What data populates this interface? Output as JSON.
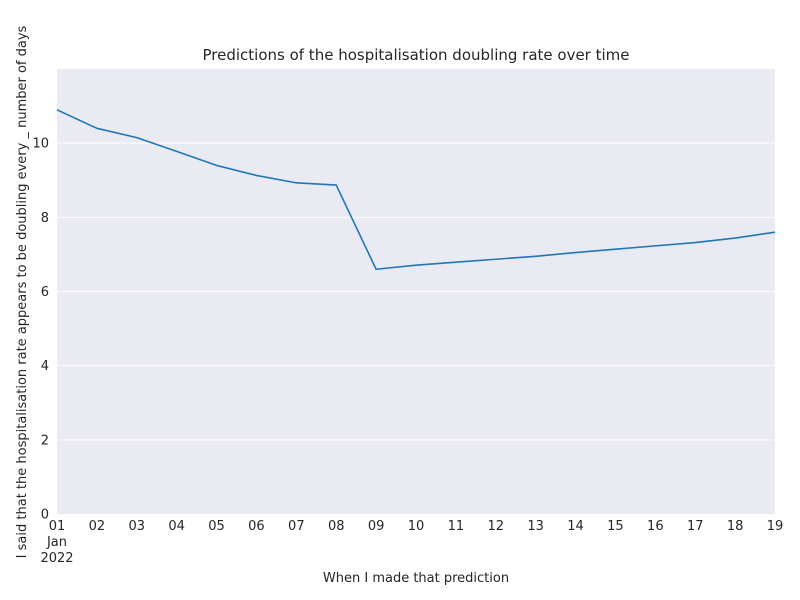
{
  "chart_data": {
    "type": "line",
    "title": "Predictions of the hospitalisation doubling rate over time",
    "xlabel": "When I made that prediction",
    "ylabel": "I said that the hospitalisation rate appears to be doubling every _ number of days",
    "x": [
      "01",
      "02",
      "03",
      "04",
      "05",
      "06",
      "07",
      "08",
      "09",
      "10",
      "11",
      "12",
      "13",
      "14",
      "15",
      "16",
      "17",
      "18",
      "19"
    ],
    "x_dates": [
      "2022-01-01",
      "2022-01-02",
      "2022-01-03",
      "2022-01-04",
      "2022-01-05",
      "2022-01-06",
      "2022-01-07",
      "2022-01-08",
      "2022-01-09",
      "2022-01-10",
      "2022-01-11",
      "2022-01-12",
      "2022-01-13",
      "2022-01-14",
      "2022-01-15",
      "2022-01-16",
      "2022-01-17",
      "2022-01-18",
      "2022-01-19"
    ],
    "x_secondary_label": [
      "Jan",
      "2022"
    ],
    "series": [
      {
        "values": [
          10.9,
          10.4,
          10.15,
          9.78,
          9.4,
          9.13,
          8.93,
          8.87,
          6.6,
          6.71,
          6.79,
          6.87,
          6.95,
          7.05,
          7.14,
          7.23,
          7.32,
          7.44,
          7.6
        ],
        "color": "#1f77b4"
      }
    ],
    "yticks": [
      0,
      2,
      4,
      6,
      8,
      10
    ],
    "ylim": [
      0,
      12
    ],
    "grid": "horizontal",
    "background": "#eaeaf2",
    "legend": "none"
  }
}
